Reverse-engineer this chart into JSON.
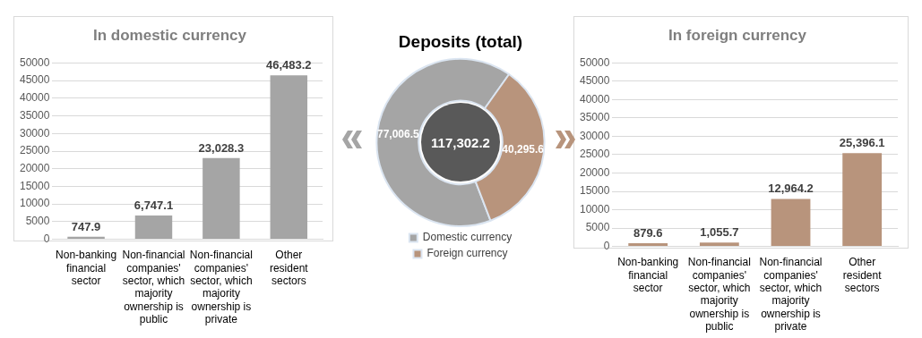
{
  "chart_data": [
    {
      "type": "bar",
      "title": "In domestic currency",
      "categories": [
        "Non-banking financial sector",
        "Non-financial companies' sector, which majority ownership is public",
        "Non-financial companies' sector, which majority ownership is private",
        "Other resident sectors"
      ],
      "values": [
        747.9,
        6747.1,
        23028.3,
        46483.2
      ],
      "value_labels": [
        "747.9",
        "6,747.1",
        "23,028.3",
        "46,483.2"
      ],
      "color": "#a5a5a5",
      "ylim": [
        0,
        50000
      ],
      "yticks": [
        0,
        5000,
        10000,
        15000,
        20000,
        25000,
        30000,
        35000,
        40000,
        45000,
        50000
      ],
      "grid": "y"
    },
    {
      "type": "donut",
      "title": "Deposits (total)",
      "categories": [
        "Domestic currency",
        "Foreign currency"
      ],
      "values": [
        77006.5,
        40295.6
      ],
      "value_labels": [
        "77,006.5",
        "40,295.6"
      ],
      "colors": [
        "#a5a5a5",
        "#b8947c"
      ],
      "legend": "bottom",
      "annotations": [
        "117,302.2"
      ]
    },
    {
      "type": "bar",
      "title": "In foreign currency",
      "categories": [
        "Non-banking financial sector",
        "Non-financial companies' sector, which majority ownership is public",
        "Non-financial companies' sector, which majority ownership is private",
        "Other resident sectors"
      ],
      "values": [
        879.6,
        1055.7,
        12964.2,
        25396.1
      ],
      "value_labels": [
        "879.6",
        "1,055.7",
        "12,964.2",
        "25,396.1"
      ],
      "color": "#b8947c",
      "ylim": [
        0,
        50000
      ],
      "yticks": [
        0,
        5000,
        10000,
        15000,
        20000,
        25000,
        30000,
        35000,
        40000,
        45000,
        50000
      ],
      "grid": "y"
    }
  ]
}
